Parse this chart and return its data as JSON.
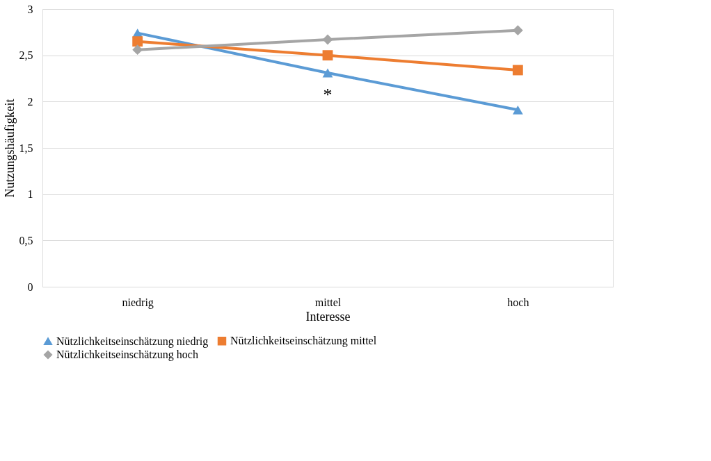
{
  "chart_data": {
    "type": "line",
    "xlabel": "Interesse",
    "ylabel": "Nutzungshäufigkeit",
    "categories": [
      "niedrig",
      "mittel",
      "hoch"
    ],
    "series": [
      {
        "name": "Nützlichkeitseinschätzung niedrig",
        "color": "#5b9bd5",
        "marker": "triangle",
        "values": [
          2.74,
          2.31,
          1.91
        ]
      },
      {
        "name": "Nützlichkeitseinschätzung mittel",
        "color": "#ed7d31",
        "marker": "square",
        "values": [
          2.65,
          2.5,
          2.34
        ]
      },
      {
        "name": "Nützlichkeitseinschätzung hoch",
        "color": "#a5a5a5",
        "marker": "diamond",
        "values": [
          2.56,
          2.67,
          2.77
        ]
      }
    ],
    "ylim": [
      0,
      3
    ],
    "yticks": [
      0,
      {
        "value": 0.5,
        "label": "0,5"
      },
      1,
      {
        "value": 1.5,
        "label": "1,5"
      },
      2,
      {
        "value": 2.5,
        "label": "2,5"
      },
      3
    ],
    "grid": "y",
    "legend": "bottom",
    "line_style": "solid",
    "annotations": [
      "*"
    ]
  }
}
